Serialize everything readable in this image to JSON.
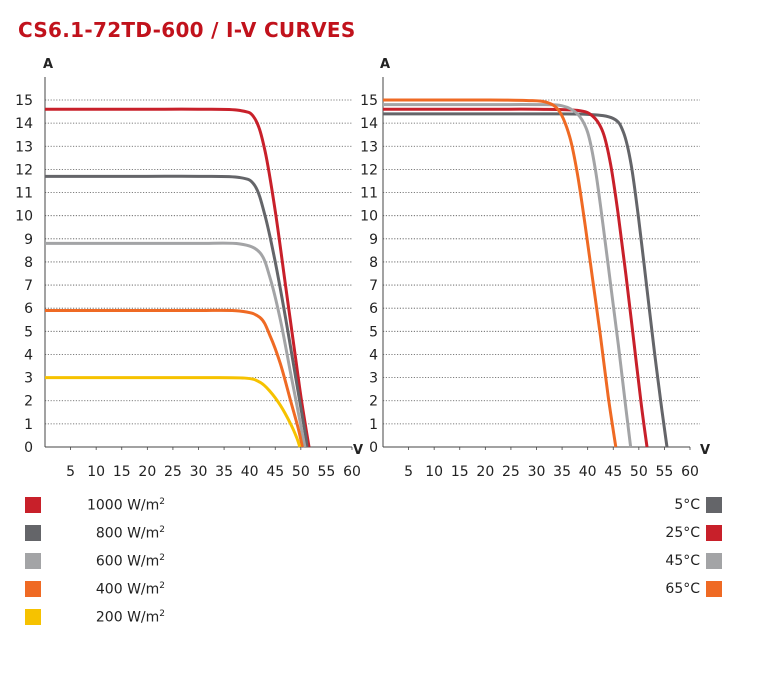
{
  "title": "CS6.1-72TD-600 / I-V CURVES",
  "chart_data": [
    {
      "type": "line",
      "title": "",
      "xlabel": "V",
      "ylabel": "A",
      "xlim": [
        0,
        60
      ],
      "ylim": [
        0,
        15
      ],
      "xticks": [
        5,
        10,
        15,
        20,
        25,
        30,
        35,
        40,
        45,
        50,
        55,
        60
      ],
      "yticks": [
        0,
        1,
        2,
        3,
        4,
        5,
        6,
        7,
        8,
        9,
        10,
        11,
        12,
        13,
        14,
        15
      ],
      "grid": "horizontal-dotted",
      "legend": "bottom-left",
      "series": [
        {
          "name": "1000 W/m2",
          "label": "1000 W/m",
          "unit_sup": "2",
          "color": "#c8202a",
          "isc": 14.6,
          "voc": 51.6,
          "x": [
            0,
            10,
            20,
            30,
            38,
            41,
            43,
            45,
            47,
            49,
            50,
            51,
            51.6
          ],
          "y": [
            14.6,
            14.6,
            14.6,
            14.6,
            14.55,
            14.2,
            12.8,
            10.2,
            7.0,
            3.8,
            2.2,
            0.8,
            0
          ]
        },
        {
          "name": "800 W/m2",
          "label": "800 W/m",
          "unit_sup": "2",
          "color": "#646569",
          "isc": 11.7,
          "voc": 51.2,
          "x": [
            0,
            10,
            20,
            30,
            38,
            41,
            43,
            45,
            47,
            49,
            50,
            51,
            51.2
          ],
          "y": [
            11.7,
            11.7,
            11.7,
            11.7,
            11.65,
            11.3,
            10.0,
            8.0,
            5.6,
            3.0,
            1.7,
            0.4,
            0
          ]
        },
        {
          "name": "600 W/m2",
          "label": "600 W/m",
          "unit_sup": "2",
          "color": "#a3a4a6",
          "isc": 8.8,
          "voc": 50.8,
          "x": [
            0,
            10,
            20,
            30,
            38,
            42,
            44,
            46,
            48,
            49.5,
            50.8
          ],
          "y": [
            8.8,
            8.8,
            8.8,
            8.8,
            8.78,
            8.4,
            7.3,
            5.5,
            3.2,
            1.5,
            0
          ]
        },
        {
          "name": "400 W/m2",
          "label": "400 W/m",
          "unit_sup": "2",
          "color": "#ef6a24",
          "isc": 5.9,
          "voc": 50.3,
          "x": [
            0,
            10,
            20,
            30,
            38,
            42,
            44,
            46,
            48,
            49.5,
            50.3
          ],
          "y": [
            5.9,
            5.9,
            5.9,
            5.9,
            5.88,
            5.6,
            4.8,
            3.6,
            2.0,
            0.8,
            0
          ]
        },
        {
          "name": "200 W/m2",
          "label": "200 W/m",
          "unit_sup": "2",
          "color": "#f6c200",
          "isc": 3.0,
          "voc": 49.8,
          "x": [
            0,
            10,
            20,
            30,
            39,
            42,
            44,
            46,
            48,
            49.2,
            49.8
          ],
          "y": [
            3.0,
            3.0,
            3.0,
            3.0,
            2.98,
            2.8,
            2.4,
            1.8,
            1.0,
            0.4,
            0
          ]
        }
      ]
    },
    {
      "type": "line",
      "title": "",
      "xlabel": "V",
      "ylabel": "A",
      "xlim": [
        0,
        60
      ],
      "ylim": [
        0,
        15
      ],
      "xticks": [
        5,
        10,
        15,
        20,
        25,
        30,
        35,
        40,
        45,
        50,
        55,
        60
      ],
      "yticks": [
        0,
        1,
        2,
        3,
        4,
        5,
        6,
        7,
        8,
        9,
        10,
        11,
        12,
        13,
        14,
        15
      ],
      "grid": "horizontal-dotted",
      "legend": "bottom-right",
      "series": [
        {
          "name": "5°C",
          "label": "5°C",
          "color": "#646569",
          "isc": 14.4,
          "voc": 55.5,
          "x": [
            0,
            20,
            30,
            40,
            45,
            47,
            48.5,
            50,
            51.5,
            53,
            54.5,
            55.5
          ],
          "y": [
            14.4,
            14.4,
            14.4,
            14.38,
            14.2,
            13.6,
            12.2,
            9.8,
            7.0,
            4.2,
            1.6,
            0
          ]
        },
        {
          "name": "25°C",
          "label": "25°C",
          "color": "#c8202a",
          "isc": 14.6,
          "voc": 51.6,
          "x": [
            0,
            20,
            30,
            38,
            41,
            43,
            44.5,
            46,
            47.5,
            49,
            50.5,
            51.6
          ],
          "y": [
            14.6,
            14.6,
            14.6,
            14.55,
            14.3,
            13.6,
            12.2,
            10.0,
            7.4,
            4.6,
            1.8,
            0
          ]
        },
        {
          "name": "45°C",
          "label": "45°C",
          "color": "#a3a4a6",
          "isc": 14.8,
          "voc": 48.4,
          "x": [
            0,
            20,
            30,
            35,
            38,
            40,
            41.5,
            43,
            44.5,
            46,
            47.4,
            48.4
          ],
          "y": [
            14.8,
            14.8,
            14.8,
            14.75,
            14.4,
            13.6,
            12.0,
            9.6,
            7.0,
            4.4,
            1.8,
            0
          ]
        },
        {
          "name": "65°C",
          "label": "65°C",
          "color": "#ef6a24",
          "isc": 15.0,
          "voc": 45.5,
          "x": [
            0,
            20,
            28,
            32,
            34.5,
            36.5,
            38,
            39.5,
            41,
            42.5,
            44,
            45.5
          ],
          "y": [
            15.0,
            15.0,
            14.98,
            14.9,
            14.5,
            13.4,
            11.8,
            9.6,
            7.2,
            4.8,
            2.2,
            0
          ]
        }
      ]
    }
  ]
}
